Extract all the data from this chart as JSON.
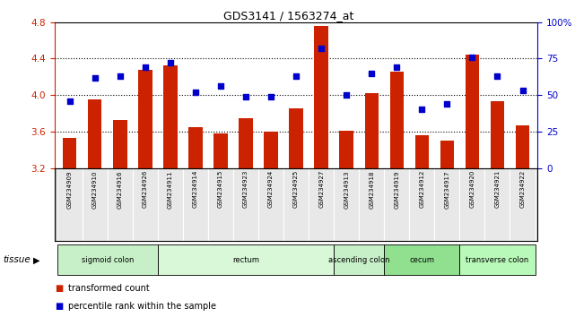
{
  "title": "GDS3141 / 1563274_at",
  "samples": [
    "GSM234909",
    "GSM234910",
    "GSM234916",
    "GSM234926",
    "GSM234911",
    "GSM234914",
    "GSM234915",
    "GSM234923",
    "GSM234924",
    "GSM234925",
    "GSM234927",
    "GSM234913",
    "GSM234918",
    "GSM234919",
    "GSM234912",
    "GSM234917",
    "GSM234920",
    "GSM234921",
    "GSM234922"
  ],
  "bar_values": [
    3.53,
    3.95,
    3.73,
    4.28,
    4.33,
    3.65,
    3.58,
    3.75,
    3.6,
    3.85,
    4.76,
    3.61,
    4.02,
    4.26,
    3.56,
    3.5,
    4.44,
    3.93,
    3.67
  ],
  "dot_values": [
    46,
    62,
    63,
    69,
    72,
    52,
    56,
    49,
    49,
    63,
    82,
    50,
    65,
    69,
    40,
    44,
    76,
    63,
    53
  ],
  "bar_color": "#cc2200",
  "dot_color": "#0000cc",
  "ylim_left": [
    3.2,
    4.8
  ],
  "ylim_right": [
    0,
    100
  ],
  "yticks_left": [
    3.2,
    3.6,
    4.0,
    4.4,
    4.8
  ],
  "yticks_right": [
    0,
    25,
    50,
    75,
    100
  ],
  "ytick_labels_right": [
    "0",
    "25",
    "50",
    "75",
    "100%"
  ],
  "hlines": [
    3.6,
    4.0,
    4.4
  ],
  "tissue_groups": [
    {
      "label": "sigmoid colon",
      "start": 0,
      "end": 4,
      "color": "#c8f0c8"
    },
    {
      "label": "rectum",
      "start": 4,
      "end": 11,
      "color": "#d8f8d8"
    },
    {
      "label": "ascending colon",
      "start": 11,
      "end": 13,
      "color": "#c8f0c8"
    },
    {
      "label": "cecum",
      "start": 13,
      "end": 16,
      "color": "#90e090"
    },
    {
      "label": "transverse colon",
      "start": 16,
      "end": 19,
      "color": "#b8f8b8"
    }
  ],
  "tissue_label": "tissue",
  "legend_bar_label": "transformed count",
  "legend_dot_label": "percentile rank within the sample",
  "bar_width": 0.55,
  "background_color": "#ffffff",
  "ylabel_left_color": "#cc2200",
  "ylabel_right_color": "#0000cc"
}
